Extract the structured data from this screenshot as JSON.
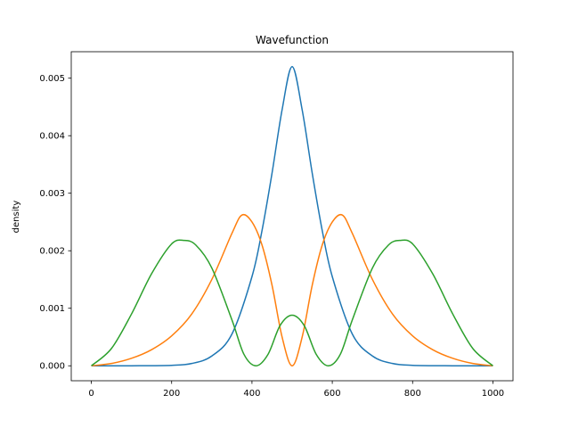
{
  "chart_data": {
    "type": "line",
    "title": "Wavefunction",
    "xlabel": "",
    "ylabel": "density",
    "xlim": [
      -50,
      1050
    ],
    "ylim": [
      -0.00026,
      0.00546
    ],
    "x_ticks": [
      0,
      200,
      400,
      600,
      800,
      1000
    ],
    "y_ticks": [
      0.0,
      0.001,
      0.002,
      0.003,
      0.004,
      0.005
    ],
    "x_tick_labels": [
      "0",
      "200",
      "400",
      "600",
      "800",
      "1000"
    ],
    "y_tick_labels": [
      "0.000",
      "0.001",
      "0.002",
      "0.003",
      "0.004",
      "0.005"
    ],
    "grid": false,
    "series": [
      {
        "color": "#1f77b4",
        "x": [
          0,
          100,
          200,
          250,
          300,
          350,
          400,
          425,
          450,
          475,
          500,
          525,
          550,
          575,
          600,
          650,
          700,
          750,
          800,
          900,
          1000
        ],
        "y": [
          0.0,
          2e-07,
          8e-06,
          4e-05,
          0.00017,
          0.00055,
          0.00155,
          0.00235,
          0.00335,
          0.00445,
          0.0052,
          0.00445,
          0.00335,
          0.00235,
          0.00155,
          0.00055,
          0.00017,
          4e-05,
          8e-06,
          2e-07,
          0.0
        ]
      },
      {
        "color": "#ff7f0e",
        "x": [
          0,
          50,
          100,
          150,
          200,
          250,
          300,
          350,
          375,
          400,
          425,
          450,
          475,
          500,
          525,
          550,
          575,
          600,
          625,
          650,
          700,
          750,
          800,
          850,
          900,
          950,
          1000
        ],
        "y": [
          0.0,
          4e-05,
          0.00013,
          0.00028,
          0.00052,
          0.0009,
          0.0015,
          0.0023,
          0.00262,
          0.0025,
          0.0021,
          0.0014,
          0.0005,
          0.0,
          0.0005,
          0.0014,
          0.0021,
          0.0025,
          0.00262,
          0.0023,
          0.0015,
          0.0009,
          0.00052,
          0.00028,
          0.00013,
          4e-05,
          0.0
        ]
      },
      {
        "color": "#2ca02c",
        "x": [
          0,
          50,
          100,
          150,
          200,
          230,
          260,
          300,
          350,
          380,
          410,
          440,
          470,
          500,
          530,
          560,
          590,
          620,
          650,
          700,
          740,
          770,
          800,
          850,
          900,
          950,
          1000
        ],
        "y": [
          0.0,
          0.0003,
          0.0009,
          0.0016,
          0.00212,
          0.00218,
          0.0021,
          0.0017,
          0.0008,
          0.0002,
          0.0,
          0.0002,
          0.0007,
          0.00088,
          0.0007,
          0.0002,
          0.0,
          0.0002,
          0.0008,
          0.0017,
          0.0021,
          0.00218,
          0.00212,
          0.0016,
          0.0009,
          0.0003,
          0.0
        ]
      }
    ]
  }
}
